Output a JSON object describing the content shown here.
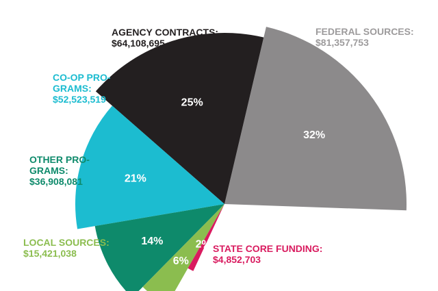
{
  "chart_data": {
    "type": "pie",
    "categories": [
      "FEDERAL SOURCES:",
      "AGENCY CONTRACTS:",
      "CO-OP PRO-GRAMS:",
      "OTHER PRO-GRAMS:",
      "LOCAL SOURCES:",
      "STATE CORE FUNDING:"
    ],
    "series": [
      {
        "values": [
          81357753,
          64108695,
          52523519,
          36908081,
          15421038,
          4852703
        ]
      }
    ],
    "slices": [
      {
        "name": "FEDERAL SOURCES:",
        "name_lines": [
          "FEDERAL SOURCES:"
        ],
        "amount": "$81,357,753",
        "value": 81357753,
        "percent_label": "32%",
        "color": "#8c8a8b"
      },
      {
        "name": "AGENCY CONTRACTS:",
        "name_lines": [
          "AGENCY CONTRACTS:"
        ],
        "amount": "$64,108,695",
        "value": 64108695,
        "percent_label": "25%",
        "color": "#231f20"
      },
      {
        "name": "CO-OP PRO-GRAMS:",
        "name_lines": [
          "CO-OP PRO-",
          "GRAMS:"
        ],
        "amount": "$52,523,519",
        "value": 52523519,
        "percent_label": "21%",
        "color": "#1cbcd0"
      },
      {
        "name": "OTHER PRO-GRAMS:",
        "name_lines": [
          "OTHER PRO-",
          "GRAMS:"
        ],
        "amount": "$36,908,081",
        "value": 36908081,
        "percent_label": "14%",
        "color": "#0e8a6b"
      },
      {
        "name": "LOCAL SOURCES:",
        "name_lines": [
          "LOCAL SOURCES:"
        ],
        "amount": "$15,421,038",
        "value": 15421038,
        "percent_label": "6%",
        "color": "#8bbd4f"
      },
      {
        "name": "STATE CORE FUNDING:",
        "name_lines": [
          "STATE CORE FUNDING:"
        ],
        "amount": "$4,852,703",
        "value": 4852703,
        "percent_label": "2%",
        "color": "#d91b5f"
      }
    ]
  }
}
